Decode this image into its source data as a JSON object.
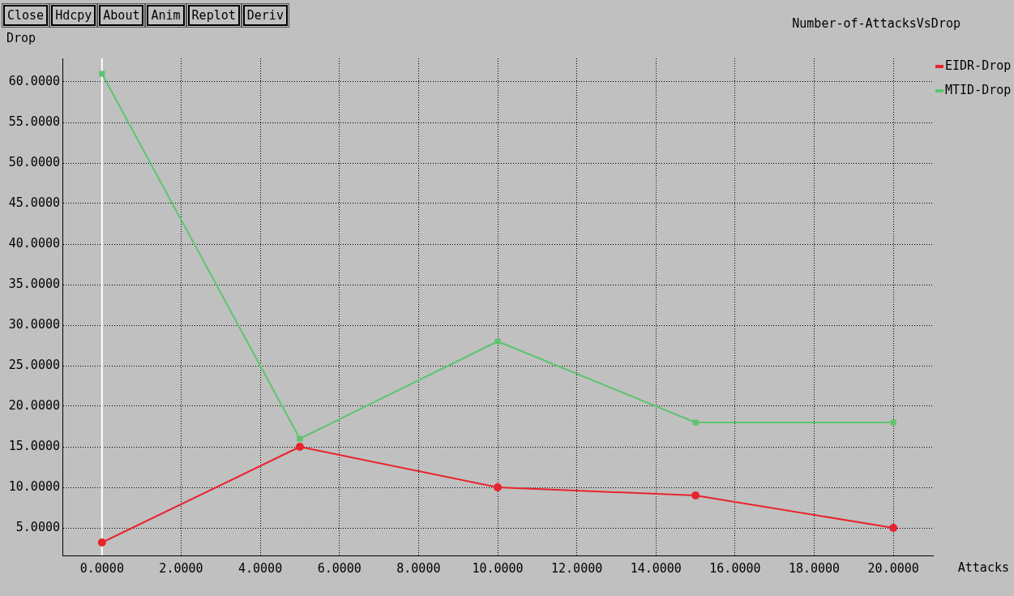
{
  "chart_data": {
    "type": "line",
    "title": "Number-of-AttacksVsDrop",
    "xlabel": "Attacks",
    "ylabel": "Drop",
    "annotations": [
      "Close",
      "Hdcpy",
      "About",
      "Anim",
      "Replot",
      "Deriv"
    ],
    "x": [
      0,
      5,
      10,
      15,
      20
    ],
    "series": [
      {
        "name": "EIDR-Drop",
        "color": "#e8242c",
        "marker": "circle",
        "values": [
          3.2,
          15,
          10,
          9,
          5
        ]
      },
      {
        "name": "MTID-Drop",
        "color": "#5ec46e",
        "marker": "square",
        "values": [
          61,
          16,
          28,
          18,
          18
        ]
      }
    ],
    "xlim": [
      -1,
      21
    ],
    "ylim": [
      1.6,
      62.9
    ],
    "xticks": [
      {
        "value": 0,
        "label": "0.0000"
      },
      {
        "value": 2,
        "label": "2.0000"
      },
      {
        "value": 4,
        "label": "4.0000"
      },
      {
        "value": 6,
        "label": "6.0000"
      },
      {
        "value": 8,
        "label": "8.0000"
      },
      {
        "value": 10,
        "label": "10.0000"
      },
      {
        "value": 12,
        "label": "12.0000"
      },
      {
        "value": 14,
        "label": "14.0000"
      },
      {
        "value": 16,
        "label": "16.0000"
      },
      {
        "value": 18,
        "label": "18.0000"
      },
      {
        "value": 20,
        "label": "20.0000"
      }
    ],
    "yticks": [
      {
        "value": 5,
        "label": "5.0000"
      },
      {
        "value": 10,
        "label": "10.0000"
      },
      {
        "value": 15,
        "label": "15.0000"
      },
      {
        "value": 20,
        "label": "20.0000"
      },
      {
        "value": 25,
        "label": "25.0000"
      },
      {
        "value": 30,
        "label": "30.0000"
      },
      {
        "value": 35,
        "label": "35.0000"
      },
      {
        "value": 40,
        "label": "40.0000"
      },
      {
        "value": 45,
        "label": "45.0000"
      },
      {
        "value": 50,
        "label": "50.0000"
      },
      {
        "value": 55,
        "label": "55.0000"
      },
      {
        "value": 60,
        "label": "60.0000"
      }
    ],
    "ref_lines": [
      {
        "axis": "x",
        "value": 0,
        "color": "#ffffff"
      }
    ],
    "grid": true,
    "legend": "top right",
    "line_style": "solid"
  }
}
